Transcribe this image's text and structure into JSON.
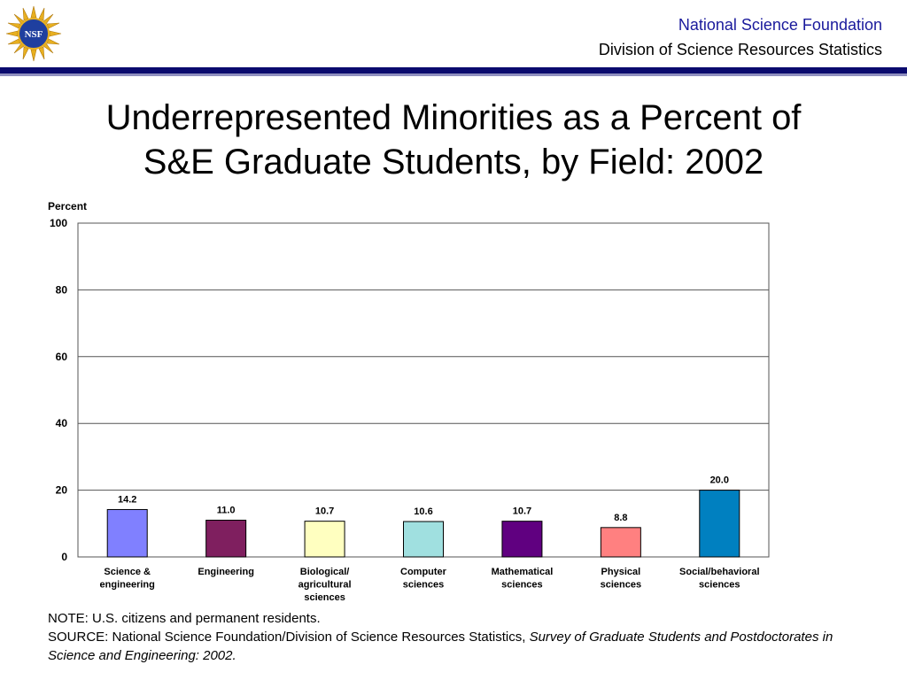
{
  "header": {
    "org_line1": "National Science Foundation",
    "org_line2": "Division of Science Resources Statistics",
    "logo_text": "NSF"
  },
  "title_line1": "Underrepresented Minorities as a Percent of",
  "title_line2": "S&E Graduate Students, by Field: 2002",
  "chart_data": {
    "type": "bar",
    "ylabel": "Percent",
    "ylim": [
      0,
      100
    ],
    "yticks": [
      0,
      20,
      40,
      60,
      80,
      100
    ],
    "grid": true,
    "categories": [
      [
        "Science &",
        "engineering"
      ],
      [
        "Engineering"
      ],
      [
        "Biological/",
        "agricultural",
        "sciences"
      ],
      [
        "Computer",
        "sciences"
      ],
      [
        "Mathematical",
        "sciences"
      ],
      [
        "Physical",
        "sciences"
      ],
      [
        "Social/behavioral",
        "sciences"
      ]
    ],
    "values": [
      14.2,
      11.0,
      10.7,
      10.6,
      10.7,
      8.8,
      20.0
    ],
    "value_labels": [
      "14.2",
      "11.0",
      "10.7",
      "10.6",
      "10.7",
      "8.8",
      "20.0"
    ],
    "colors": [
      "#8080ff",
      "#7f1f5f",
      "#ffffc0",
      "#a0e0e0",
      "#600080",
      "#ff8080",
      "#0080c0"
    ]
  },
  "notes": {
    "note": "NOTE:  U.S. citizens and permanent residents.",
    "source_prefix": "SOURCE:  National Science Foundation/Division of Science Resources Statistics, ",
    "source_title": "Survey of Graduate Students and Postdoctorates in Science and Engineering: 2002."
  }
}
